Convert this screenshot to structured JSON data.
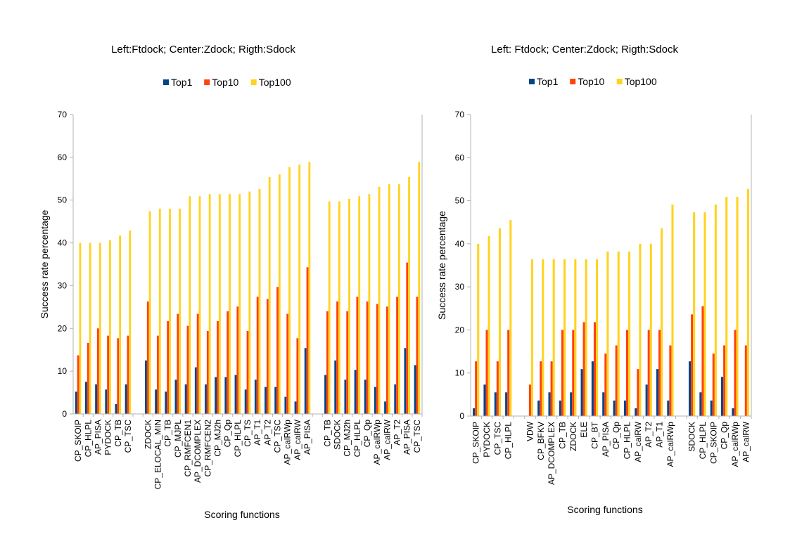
{
  "colors": {
    "top1": "#004586",
    "top10": "#ff420e",
    "top100": "#ffd320",
    "axis": "#b3b3b3"
  },
  "chart_data": [
    {
      "type": "bar",
      "title": "Left:Ftdock; Center:Zdock; Rigth:Sdock",
      "xlabel": "Scoring functions",
      "ylabel": "Success rate percentage",
      "ylim": [
        0,
        70
      ],
      "yticks": [
        0,
        10,
        20,
        30,
        40,
        50,
        60,
        70
      ],
      "grid": false,
      "legend_position": "top-center",
      "categories": [
        "CP_SKOIP",
        "CP_HLPL",
        "AP_PISA",
        "PYDOCK",
        "CP_TB",
        "CP_TSC",
        "",
        "ZDOCK",
        "CP_ELOCAL_MIN",
        "CP_TB",
        "CP_MJPL",
        "CP_RMFCEN1",
        "AP_DCOMPLEX",
        "CP_RMFCEN2",
        "CP_MJ2h",
        "CP_Qp",
        "CP_HLPL",
        "CP_TS",
        "AP_T1",
        "AP_T2",
        "CP_TSC",
        "AP_calRWp",
        "AP_calRW",
        "AP_PISA",
        "",
        "CP_TB",
        "SDOCK",
        "CP_MJ2h",
        "CP_HLPL",
        "CP_Qp",
        "AP_calRWp",
        "AP_calRW",
        "AP_T2",
        "AP_PISA",
        "CP_TSC"
      ],
      "series": [
        {
          "name": "Top1",
          "values": [
            5.2,
            7.5,
            6.9,
            5.7,
            2.3,
            6.9,
            null,
            12.5,
            5.7,
            5.2,
            8.0,
            6.9,
            10.9,
            6.9,
            8.6,
            8.6,
            9.1,
            5.7,
            8.0,
            6.3,
            6.3,
            4.0,
            2.9,
            15.4,
            null,
            9.1,
            12.5,
            8.0,
            10.3,
            8.0,
            6.3,
            2.9,
            6.9,
            15.4,
            11.4
          ]
        },
        {
          "name": "Top10",
          "values": [
            13.7,
            16.6,
            20.0,
            18.3,
            17.7,
            18.3,
            null,
            26.3,
            18.3,
            21.7,
            23.4,
            20.6,
            23.4,
            19.4,
            21.7,
            24.0,
            25.1,
            19.4,
            27.4,
            26.9,
            29.7,
            23.4,
            17.7,
            34.3,
            null,
            24.0,
            26.3,
            24.0,
            27.4,
            26.3,
            25.7,
            25.1,
            27.4,
            35.4,
            27.4
          ]
        },
        {
          "name": "Top100",
          "values": [
            40.0,
            40.0,
            40.0,
            40.6,
            41.7,
            42.9,
            null,
            47.4,
            48.0,
            48.0,
            48.0,
            50.9,
            50.9,
            51.4,
            51.4,
            51.4,
            51.4,
            52.0,
            52.6,
            55.4,
            56.0,
            57.7,
            58.3,
            58.9,
            null,
            49.7,
            49.7,
            50.3,
            50.9,
            51.4,
            53.1,
            53.7,
            53.7,
            55.4,
            58.9
          ]
        }
      ]
    },
    {
      "type": "bar",
      "title": "Left: Ftdock; Center:Zdock; Rigth:Sdock",
      "xlabel": "Scoring functions",
      "ylabel": "Success rate percentage",
      "ylim": [
        0,
        70
      ],
      "yticks": [
        0,
        10,
        20,
        30,
        40,
        50,
        60,
        70
      ],
      "grid": false,
      "legend_position": "top-center",
      "categories": [
        "CP_SKOIP",
        "PYDOCK",
        "CP_TSC",
        "CP_HLPL",
        "",
        "VDW",
        "CP_BFKV",
        "AP_DCOMPLEX",
        "CP_TB",
        "ZDOCK",
        "ELE",
        "CP_BT",
        "AP_PISA",
        "CP_Qp",
        "CP_HLPL",
        "AP_calRW",
        "AP_T2",
        "AP_T1",
        "AP_calRWp",
        "",
        "SDOCK",
        "CP_HLPL",
        "CP_SKOIP",
        "CP_Qp",
        "AP_calRWp",
        "AP_calRW"
      ],
      "series": [
        {
          "name": "Top1",
          "values": [
            1.8,
            7.3,
            5.5,
            5.5,
            null,
            0,
            3.6,
            5.5,
            3.6,
            5.5,
            10.9,
            12.7,
            5.5,
            3.6,
            3.6,
            1.8,
            7.3,
            10.9,
            3.6,
            null,
            12.7,
            5.5,
            3.6,
            9.1,
            1.8,
            0
          ]
        },
        {
          "name": "Top10",
          "values": [
            12.7,
            20.0,
            12.7,
            20.0,
            null,
            7.3,
            12.7,
            12.7,
            20.0,
            20.0,
            21.8,
            21.8,
            14.5,
            16.4,
            20.0,
            10.9,
            20.0,
            20.0,
            16.4,
            null,
            23.6,
            25.5,
            14.5,
            16.4,
            20.0,
            16.4
          ]
        },
        {
          "name": "Top100",
          "values": [
            40.0,
            41.8,
            43.6,
            45.5,
            null,
            36.4,
            36.4,
            36.4,
            36.4,
            36.4,
            36.4,
            36.4,
            38.2,
            38.2,
            38.2,
            40.0,
            40.0,
            43.6,
            49.1,
            null,
            47.3,
            47.3,
            49.1,
            50.9,
            50.9,
            52.7
          ]
        }
      ]
    }
  ]
}
